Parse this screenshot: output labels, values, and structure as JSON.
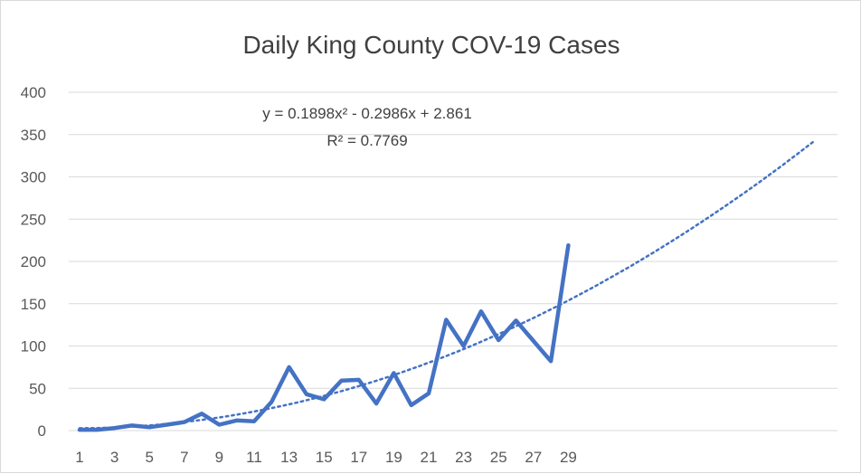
{
  "chart_data": {
    "type": "line",
    "title": "Daily King County COV-19 Cases",
    "xlabel": "",
    "ylabel": "",
    "ylim": [
      0,
      400
    ],
    "y_ticks": [
      "0",
      "50",
      "100",
      "150",
      "200",
      "250",
      "300",
      "350",
      "400"
    ],
    "x_ticks": [
      "1",
      "3",
      "5",
      "7",
      "9",
      "11",
      "13",
      "15",
      "17",
      "19",
      "21",
      "23",
      "25",
      "27",
      "29"
    ],
    "x": [
      1,
      2,
      3,
      4,
      5,
      6,
      7,
      8,
      9,
      10,
      11,
      12,
      13,
      14,
      15,
      16,
      17,
      18,
      19,
      20,
      21,
      22,
      23,
      24,
      25,
      26,
      27,
      28,
      29
    ],
    "series": [
      {
        "values": [
          1,
          1,
          3,
          6,
          4,
          7,
          10,
          20,
          7,
          12,
          11,
          34,
          75,
          43,
          37,
          59,
          60,
          32,
          68,
          30,
          44,
          131,
          100,
          141,
          107,
          130,
          106,
          82,
          219
        ]
      }
    ],
    "trendline": {
      "type": "polynomial",
      "order": 2,
      "x_range": [
        1,
        43
      ],
      "equation_label": "y = 0.1898x² - 0.2986x + 2.861",
      "r2_label": "R² = 0.7769",
      "coefficients": [
        0.1898,
        -0.2986,
        2.861
      ]
    },
    "grid": true,
    "legend": "none",
    "colors": {
      "series": "#4472c4",
      "grid": "#d9d9d9",
      "text": "#595959"
    }
  }
}
